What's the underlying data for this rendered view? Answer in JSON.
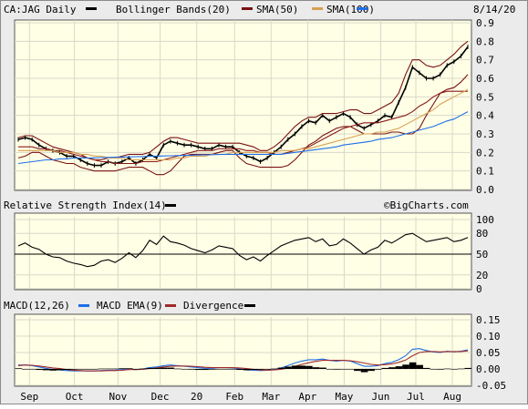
{
  "header": {
    "symbol": "CA:JAG Daily",
    "bollinger_label": "Bollinger Bands(20)",
    "sma50_label": "SMA(50)",
    "sma100_label": "SMA(100)",
    "date": "8/14/20"
  },
  "rsi_header": {
    "label": "Relative Strength Index(14)",
    "credit": "©BigCharts.com"
  },
  "macd_header": {
    "macd_label": "MACD(12,26)",
    "ema_label": "MACD EMA(9)",
    "divergence_label": "Divergence"
  },
  "colors": {
    "bollinger": "#7a1010",
    "sma50": "#8b1a1a",
    "sma100": "#d7a050",
    "macd": "#1e6fe6",
    "ema": "#a02a2a",
    "background": "#ffffe6"
  },
  "chart_data": [
    {
      "type": "line",
      "title": "CA:JAG Daily",
      "x_labels": [
        "Sep",
        "Oct",
        "Nov",
        "Dec",
        "20",
        "Feb",
        "Mar",
        "Apr",
        "May",
        "Jun",
        "Jul",
        "Aug"
      ],
      "y_ticks": [
        "0.9",
        "0.8",
        "0.7",
        "0.6",
        "0.5",
        "0.4",
        "0.3",
        "0.2",
        "0.1",
        "0.0"
      ],
      "ylim": [
        0,
        0.9
      ],
      "x": [
        0,
        4,
        8,
        12,
        16,
        20,
        24,
        28,
        32,
        36,
        40,
        44,
        48,
        52,
        56,
        60,
        64,
        68,
        72,
        76,
        80,
        84,
        88,
        92,
        96,
        100,
        104,
        108,
        112,
        116,
        120,
        124,
        128,
        132,
        136,
        140,
        144,
        148,
        152,
        156,
        160,
        164,
        168,
        172,
        176,
        180,
        184,
        188,
        192,
        196,
        200,
        204,
        208,
        212,
        216,
        220,
        224,
        228,
        232,
        236,
        240,
        244,
        248,
        252,
        256,
        260
      ],
      "series": [
        {
          "name": "CA:JAG Daily",
          "values": [
            0.27,
            0.28,
            0.27,
            0.24,
            0.22,
            0.21,
            0.2,
            0.18,
            0.18,
            0.16,
            0.14,
            0.13,
            0.13,
            0.15,
            0.14,
            0.15,
            0.17,
            0.14,
            0.16,
            0.19,
            0.17,
            0.24,
            0.26,
            0.25,
            0.24,
            0.24,
            0.23,
            0.22,
            0.22,
            0.24,
            0.23,
            0.23,
            0.2,
            0.18,
            0.17,
            0.15,
            0.17,
            0.2,
            0.23,
            0.27,
            0.3,
            0.34,
            0.37,
            0.36,
            0.4,
            0.37,
            0.39,
            0.41,
            0.39,
            0.35,
            0.33,
            0.35,
            0.37,
            0.4,
            0.39,
            0.47,
            0.55,
            0.66,
            0.63,
            0.6,
            0.6,
            0.62,
            0.67,
            0.69,
            0.72,
            0.77
          ]
        },
        {
          "name": "Bollinger Bands(20) upper",
          "values": [
            0.28,
            0.29,
            0.29,
            0.27,
            0.25,
            0.23,
            0.22,
            0.21,
            0.2,
            0.19,
            0.17,
            0.16,
            0.16,
            0.17,
            0.17,
            0.18,
            0.19,
            0.19,
            0.19,
            0.2,
            0.23,
            0.26,
            0.28,
            0.28,
            0.27,
            0.26,
            0.25,
            0.25,
            0.25,
            0.25,
            0.25,
            0.25,
            0.25,
            0.24,
            0.23,
            0.21,
            0.21,
            0.23,
            0.26,
            0.3,
            0.34,
            0.37,
            0.39,
            0.39,
            0.41,
            0.41,
            0.41,
            0.42,
            0.43,
            0.43,
            0.41,
            0.41,
            0.43,
            0.45,
            0.47,
            0.52,
            0.62,
            0.7,
            0.7,
            0.67,
            0.66,
            0.67,
            0.7,
            0.73,
            0.77,
            0.8
          ]
        },
        {
          "name": "Bollinger Bands(20) lower",
          "values": [
            0.17,
            0.18,
            0.2,
            0.2,
            0.18,
            0.16,
            0.15,
            0.14,
            0.14,
            0.12,
            0.11,
            0.1,
            0.1,
            0.1,
            0.1,
            0.11,
            0.12,
            0.12,
            0.12,
            0.1,
            0.08,
            0.08,
            0.1,
            0.14,
            0.18,
            0.19,
            0.19,
            0.19,
            0.19,
            0.2,
            0.21,
            0.21,
            0.17,
            0.14,
            0.13,
            0.12,
            0.12,
            0.12,
            0.12,
            0.13,
            0.16,
            0.2,
            0.24,
            0.26,
            0.29,
            0.31,
            0.33,
            0.34,
            0.34,
            0.32,
            0.3,
            0.3,
            0.3,
            0.3,
            0.31,
            0.31,
            0.3,
            0.3,
            0.33,
            0.4,
            0.46,
            0.52,
            0.54,
            0.55,
            0.58,
            0.62
          ]
        },
        {
          "name": "SMA(50)",
          "values": [
            0.23,
            0.23,
            0.23,
            0.22,
            0.22,
            0.21,
            0.21,
            0.2,
            0.19,
            0.18,
            0.17,
            0.16,
            0.15,
            0.15,
            0.14,
            0.14,
            0.14,
            0.14,
            0.15,
            0.15,
            0.15,
            0.16,
            0.17,
            0.18,
            0.19,
            0.2,
            0.21,
            0.21,
            0.21,
            0.22,
            0.22,
            0.22,
            0.22,
            0.21,
            0.21,
            0.2,
            0.2,
            0.19,
            0.19,
            0.2,
            0.21,
            0.22,
            0.23,
            0.25,
            0.27,
            0.29,
            0.31,
            0.33,
            0.34,
            0.35,
            0.36,
            0.36,
            0.36,
            0.37,
            0.38,
            0.39,
            0.4,
            0.42,
            0.45,
            0.47,
            0.5,
            0.52,
            0.53,
            0.53,
            0.53,
            0.53
          ]
        },
        {
          "name": "SMA(100)",
          "values": [
            0.21,
            0.21,
            0.21,
            0.21,
            0.21,
            0.21,
            0.2,
            0.2,
            0.2,
            0.19,
            0.19,
            0.18,
            0.18,
            0.17,
            0.17,
            0.17,
            0.16,
            0.16,
            0.16,
            0.16,
            0.16,
            0.16,
            0.16,
            0.17,
            0.17,
            0.18,
            0.18,
            0.18,
            0.19,
            0.19,
            0.19,
            0.2,
            0.2,
            0.2,
            0.2,
            0.2,
            0.2,
            0.2,
            0.21,
            0.21,
            0.21,
            0.22,
            0.22,
            0.23,
            0.24,
            0.25,
            0.26,
            0.27,
            0.28,
            0.29,
            0.3,
            0.3,
            0.31,
            0.31,
            0.32,
            0.33,
            0.35,
            0.37,
            0.39,
            0.41,
            0.43,
            0.46,
            0.48,
            0.5,
            0.52,
            0.54
          ]
        },
        {
          "name": "SMA(100) blue",
          "values": [
            0.14,
            0.145,
            0.15,
            0.155,
            0.16,
            0.16,
            0.165,
            0.165,
            0.17,
            0.17,
            0.17,
            0.17,
            0.172,
            0.173,
            0.174,
            0.175,
            0.176,
            0.177,
            0.178,
            0.179,
            0.18,
            0.181,
            0.182,
            0.183,
            0.184,
            0.185,
            0.186,
            0.187,
            0.188,
            0.189,
            0.19,
            0.19,
            0.19,
            0.19,
            0.19,
            0.19,
            0.19,
            0.19,
            0.19,
            0.195,
            0.2,
            0.205,
            0.21,
            0.215,
            0.22,
            0.225,
            0.23,
            0.24,
            0.245,
            0.25,
            0.255,
            0.26,
            0.27,
            0.275,
            0.28,
            0.29,
            0.3,
            0.31,
            0.32,
            0.33,
            0.34,
            0.355,
            0.37,
            0.38,
            0.4,
            0.42
          ]
        }
      ]
    },
    {
      "type": "line",
      "title": "Relative Strength Index(14)",
      "y_ticks": [
        "100",
        "80",
        "50",
        "20",
        "0"
      ],
      "ylim": [
        0,
        100
      ],
      "reference_line": 50,
      "x": [
        0,
        4,
        8,
        12,
        16,
        20,
        24,
        28,
        32,
        36,
        40,
        44,
        48,
        52,
        56,
        60,
        64,
        68,
        72,
        76,
        80,
        84,
        88,
        92,
        96,
        100,
        104,
        108,
        112,
        116,
        120,
        124,
        128,
        132,
        136,
        140,
        144,
        148,
        152,
        156,
        160,
        164,
        168,
        172,
        176,
        180,
        184,
        188,
        192,
        196,
        200,
        204,
        208,
        212,
        216,
        220,
        224,
        228,
        232,
        236,
        240,
        244,
        248,
        252,
        256,
        260
      ],
      "series": [
        {
          "name": "Relative Strength Index(14)",
          "values": [
            62,
            66,
            60,
            57,
            50,
            46,
            45,
            40,
            37,
            35,
            32,
            34,
            40,
            42,
            38,
            44,
            52,
            45,
            55,
            70,
            64,
            76,
            68,
            66,
            63,
            58,
            55,
            52,
            56,
            62,
            60,
            58,
            48,
            42,
            46,
            40,
            48,
            55,
            62,
            66,
            70,
            72,
            74,
            68,
            72,
            62,
            64,
            72,
            66,
            58,
            50,
            56,
            60,
            70,
            66,
            72,
            78,
            80,
            74,
            68,
            70,
            72,
            74,
            68,
            70,
            74
          ]
        }
      ]
    },
    {
      "type": "line",
      "title": "MACD(12,26)",
      "y_ticks": [
        "0.15",
        "0.10",
        "0.05",
        "0.00",
        "-0.05"
      ],
      "ylim": [
        -0.05,
        0.15
      ],
      "x": [
        0,
        4,
        8,
        12,
        16,
        20,
        24,
        28,
        32,
        36,
        40,
        44,
        48,
        52,
        56,
        60,
        64,
        68,
        72,
        76,
        80,
        84,
        88,
        92,
        96,
        100,
        104,
        108,
        112,
        116,
        120,
        124,
        128,
        132,
        136,
        140,
        144,
        148,
        152,
        156,
        160,
        164,
        168,
        172,
        176,
        180,
        184,
        188,
        192,
        196,
        200,
        204,
        208,
        212,
        216,
        220,
        224,
        228,
        232,
        236,
        240,
        244,
        248,
        252,
        256,
        260
      ],
      "series": [
        {
          "name": "MACD(12,26)",
          "values": [
            0.012,
            0.012,
            0.01,
            0.006,
            0.002,
            -0.002,
            -0.003,
            -0.005,
            -0.006,
            -0.006,
            -0.006,
            -0.006,
            -0.005,
            -0.004,
            -0.004,
            -0.002,
            0.0,
            -0.002,
            0.0,
            0.004,
            0.006,
            0.01,
            0.012,
            0.01,
            0.008,
            0.006,
            0.004,
            0.002,
            0.002,
            0.004,
            0.004,
            0.003,
            0.0,
            -0.003,
            -0.004,
            -0.005,
            -0.004,
            -0.002,
            0.003,
            0.01,
            0.018,
            0.024,
            0.028,
            0.028,
            0.03,
            0.026,
            0.024,
            0.026,
            0.024,
            0.016,
            0.008,
            0.008,
            0.01,
            0.016,
            0.02,
            0.028,
            0.04,
            0.06,
            0.062,
            0.056,
            0.052,
            0.05,
            0.054,
            0.052,
            0.054,
            0.058
          ]
        },
        {
          "name": "MACD EMA(9)",
          "values": [
            0.01,
            0.012,
            0.011,
            0.009,
            0.006,
            0.003,
            0.001,
            -0.002,
            -0.004,
            -0.005,
            -0.006,
            -0.006,
            -0.006,
            -0.005,
            -0.005,
            -0.004,
            -0.002,
            -0.002,
            -0.001,
            0.001,
            0.003,
            0.006,
            0.008,
            0.009,
            0.009,
            0.008,
            0.007,
            0.005,
            0.004,
            0.004,
            0.004,
            0.004,
            0.003,
            0.001,
            -0.001,
            -0.003,
            -0.004,
            -0.003,
            -0.001,
            0.003,
            0.008,
            0.014,
            0.019,
            0.023,
            0.026,
            0.026,
            0.026,
            0.026,
            0.025,
            0.022,
            0.018,
            0.014,
            0.012,
            0.013,
            0.015,
            0.02,
            0.027,
            0.04,
            0.05,
            0.053,
            0.053,
            0.052,
            0.053,
            0.053,
            0.053,
            0.055
          ]
        },
        {
          "name": "Divergence",
          "values": [
            0.002,
            0.0,
            -0.001,
            -0.003,
            -0.004,
            -0.005,
            -0.004,
            -0.003,
            -0.002,
            -0.001,
            0.0,
            0.0,
            0.001,
            0.001,
            0.001,
            0.002,
            0.002,
            0.0,
            0.001,
            0.003,
            0.003,
            0.004,
            0.004,
            0.001,
            -0.001,
            -0.002,
            -0.003,
            -0.003,
            -0.002,
            0.0,
            0.0,
            -0.001,
            -0.003,
            -0.004,
            -0.003,
            -0.002,
            0.0,
            0.001,
            0.004,
            0.007,
            0.01,
            0.01,
            0.009,
            0.005,
            0.004,
            0.0,
            -0.002,
            0.0,
            -0.001,
            -0.006,
            -0.01,
            -0.006,
            -0.002,
            0.003,
            0.005,
            0.008,
            0.013,
            0.02,
            0.012,
            0.003,
            -0.001,
            -0.002,
            0.001,
            -0.001,
            0.001,
            0.003
          ]
        }
      ]
    }
  ]
}
